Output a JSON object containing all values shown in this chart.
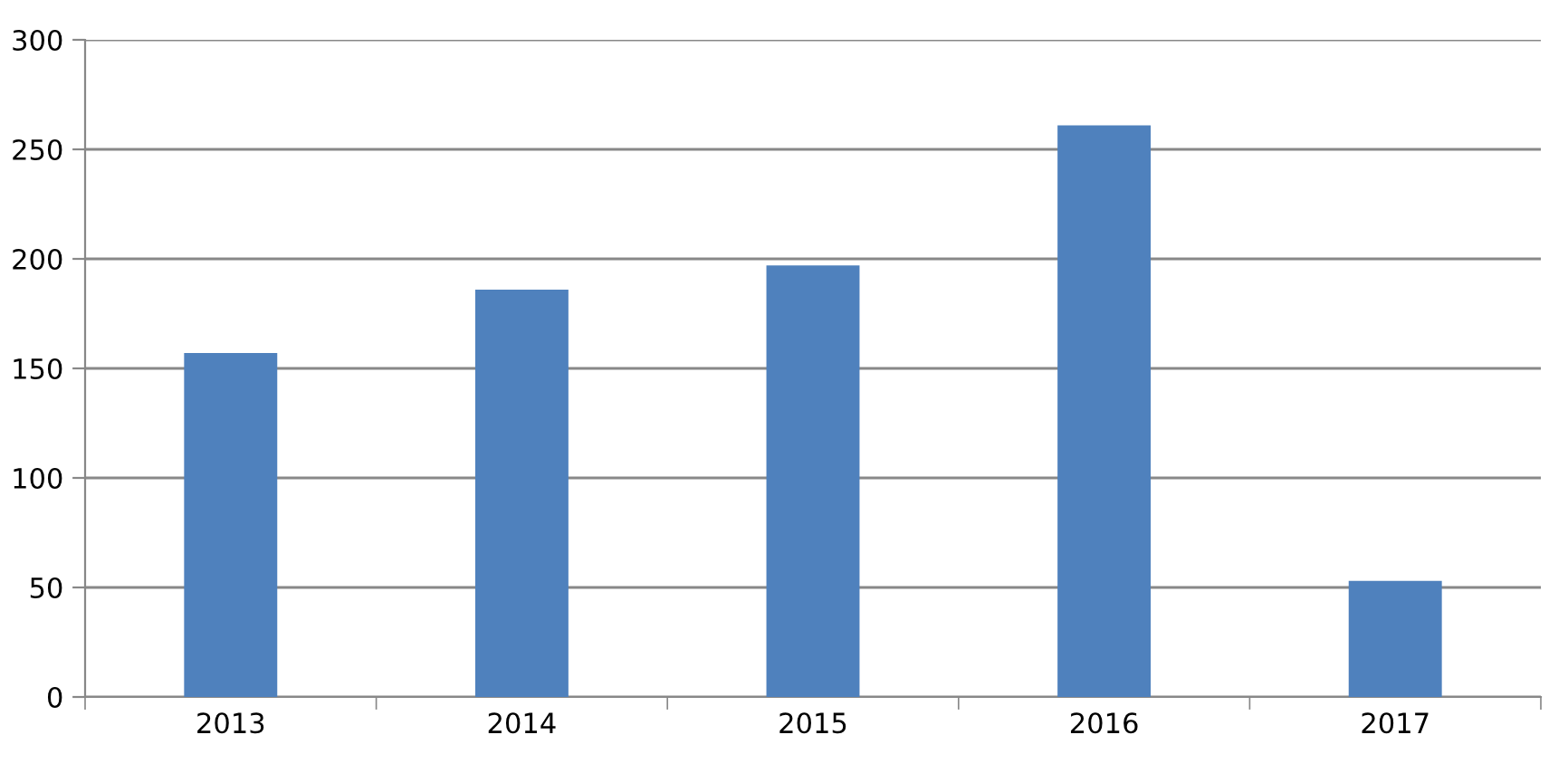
{
  "chart_data": {
    "type": "bar",
    "categories": [
      "2013",
      "2014",
      "2015",
      "2016",
      "2017"
    ],
    "values": [
      157,
      186,
      197,
      261,
      53
    ],
    "color": "#4f81bd",
    "ylim": [
      0,
      300
    ],
    "yticks": [
      0,
      50,
      100,
      150,
      200,
      250,
      300
    ],
    "grid": "y",
    "legend": false
  }
}
